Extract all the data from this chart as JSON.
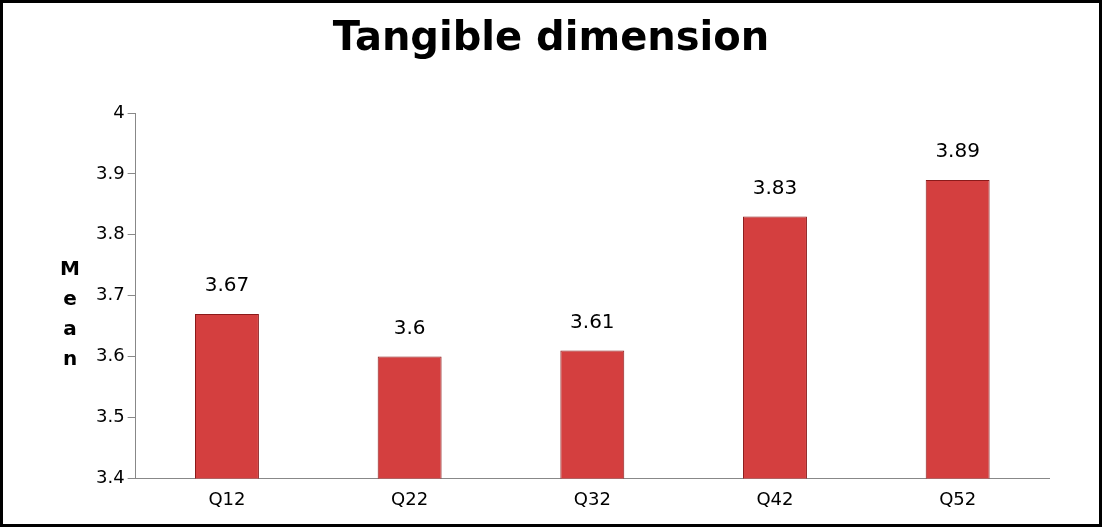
{
  "chart_data": {
    "type": "bar",
    "title": "Tangible dimension",
    "ylabel": "Mean",
    "categories": [
      "Q12",
      "Q22",
      "Q32",
      "Q42",
      "Q52"
    ],
    "values": [
      3.67,
      3.6,
      3.61,
      3.83,
      3.89
    ],
    "color": "#d43f3f",
    "ylim": [
      3.4,
      4
    ],
    "yticks": [
      3.4,
      3.5,
      3.6,
      3.7,
      3.8,
      3.9,
      4
    ],
    "grid": false,
    "legend": false,
    "data_labels": true
  }
}
